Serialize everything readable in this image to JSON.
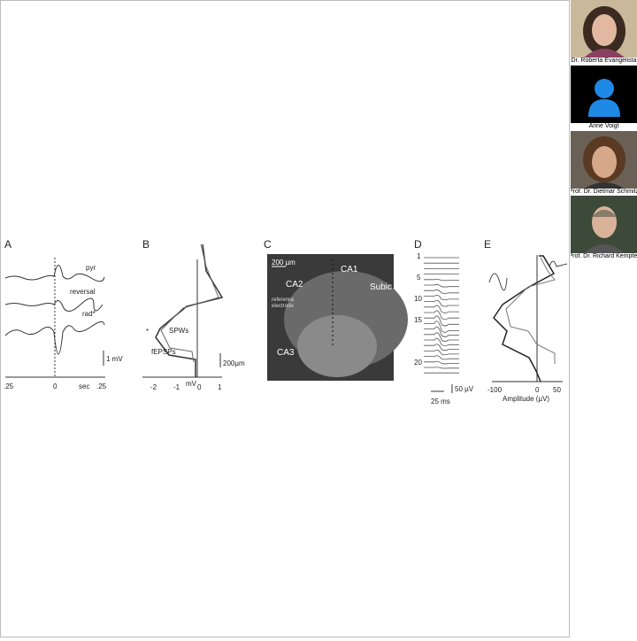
{
  "participants": [
    {
      "name": "Dr. Roberta Evangelista"
    },
    {
      "name": "Anne Voigt"
    },
    {
      "name": "Prof. Dr. Dietmar Schmitz"
    },
    {
      "name": "Prof. Dr. Richard Kempter"
    }
  ],
  "slide": {
    "panels": [
      {
        "label": "A",
        "texts": [
          "pyr",
          "reversal",
          "rad*",
          "1 mV",
          ".25",
          "0",
          "sec",
          ".25"
        ]
      },
      {
        "label": "B",
        "texts": [
          "*",
          "SPWs",
          "fEPSPs",
          "200µm",
          "-2",
          "mV",
          "-1",
          "0",
          "1"
        ]
      },
      {
        "label": "C",
        "texts": [
          "200 µm",
          "CA1",
          "CA2",
          "Subic",
          "reference",
          "electrode",
          "CA3"
        ]
      },
      {
        "label": "D",
        "texts": [
          "1",
          "5",
          "10",
          "15",
          "20",
          "50 µV",
          "25 ms"
        ]
      },
      {
        "label": "E",
        "texts": [
          "-100",
          "0",
          "50",
          "Amplitude (µV)"
        ]
      }
    ]
  }
}
